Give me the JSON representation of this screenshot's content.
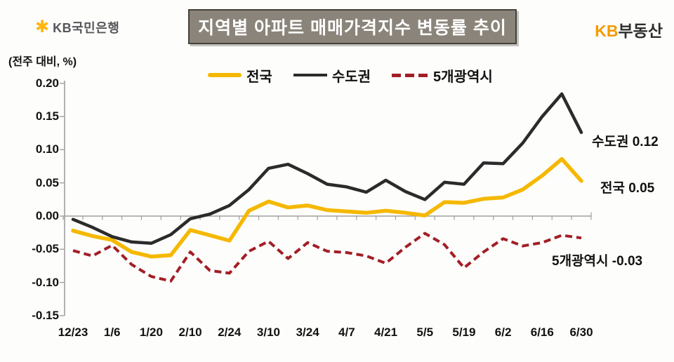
{
  "header": {
    "logo": {
      "symbol": "✱",
      "text": "KB국민은행"
    },
    "title": "지역별 아파트 매매가격지수 변동률 추이",
    "brand": {
      "kb": "KB",
      "rest": "부동산"
    }
  },
  "axis_note": "(전주 대비, %)",
  "chart_data": {
    "type": "line",
    "title": "지역별 아파트 매매가격지수 변동률 추이",
    "unit_note": "(전주 대비, %)",
    "legend_position": "top",
    "grid": false,
    "ylim": [
      -0.15,
      0.2
    ],
    "y_tick_labels": [
      "0.20",
      "0.15",
      "0.10",
      "0.05",
      "0.00",
      "-0.05",
      "-0.10",
      "-0.15"
    ],
    "x_tick_labels": [
      "12/23",
      "1/6",
      "1/20",
      "2/10",
      "2/24",
      "3/10",
      "3/24",
      "4/7",
      "4/21",
      "5/5",
      "5/19",
      "6/2",
      "6/16",
      "6/30"
    ],
    "points_per_label": 2,
    "n_points": 27,
    "series": [
      {
        "key": "five-metro",
        "name": "5개광역시",
        "color": "#a21e26",
        "style": "dashed",
        "end_value": -0.03,
        "values": [
          -0.052,
          -0.06,
          -0.044,
          -0.073,
          -0.091,
          -0.098,
          -0.054,
          -0.082,
          -0.086,
          -0.053,
          -0.038,
          -0.064,
          -0.04,
          -0.053,
          -0.055,
          -0.06,
          -0.071,
          -0.047,
          -0.026,
          -0.043,
          -0.078,
          -0.054,
          -0.034,
          -0.045,
          -0.04,
          -0.029,
          -0.033
        ]
      },
      {
        "key": "nationwide",
        "name": "전국",
        "color": "#f5b800",
        "style": "solid-thick",
        "end_value": 0.05,
        "values": [
          -0.022,
          -0.03,
          -0.036,
          -0.054,
          -0.061,
          -0.059,
          -0.021,
          -0.029,
          -0.037,
          0.008,
          0.022,
          0.013,
          0.016,
          0.009,
          0.007,
          0.005,
          0.008,
          0.005,
          0.001,
          0.021,
          0.02,
          0.026,
          0.028,
          0.04,
          0.061,
          0.086,
          0.053
        ]
      },
      {
        "key": "capital-area",
        "name": "수도권",
        "color": "#2b2b2b",
        "style": "solid-thin",
        "end_value": 0.12,
        "values": [
          -0.005,
          -0.017,
          -0.031,
          -0.039,
          -0.041,
          -0.028,
          -0.004,
          0.003,
          0.016,
          0.04,
          0.072,
          0.078,
          0.064,
          0.048,
          0.044,
          0.036,
          0.054,
          0.037,
          0.025,
          0.051,
          0.048,
          0.08,
          0.079,
          0.11,
          0.15,
          0.184,
          0.126
        ]
      }
    ],
    "legend_order": [
      "nationwide",
      "capital-area",
      "five-metro"
    ],
    "end_labels": [
      {
        "key": "capital-area",
        "text": "수도권 0.12"
      },
      {
        "key": "nationwide",
        "text": "전국 0.05"
      },
      {
        "key": "five-metro",
        "text": "5개광역시 -0.03"
      }
    ]
  }
}
